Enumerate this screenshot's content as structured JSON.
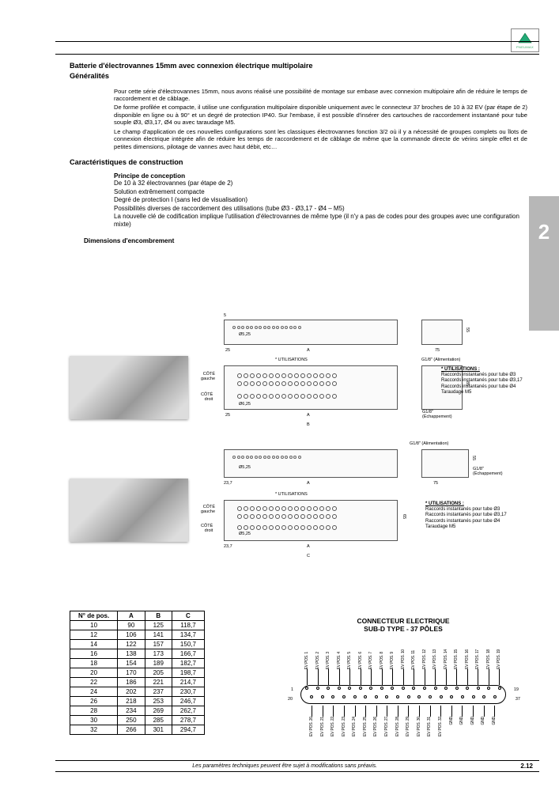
{
  "logo_text": "PNEUMAX",
  "title": "Batterie d'électrovannes 15mm avec connexion électrique multipolaire",
  "subtitle": "Généralités",
  "para1": "Pour cette série d'électrovannes 15mm, nous avons réalisé une possibilité de montage sur embase avec connexion multipolaire afin de réduire le temps de raccordement et de câblage.",
  "para2": "De forme profilée et compacte, il utilise une configuration multipolaire disponible uniquement avec le connecteur 37 broches de 10 à 32 EV (par étape de 2) disponible en ligne ou à 90° et un degré de protection IP40. Sur l'embase, il est possible d'insérer des cartouches de raccordement instantané pour tube souple Ø3, Ø3,17, Ø4 ou avec taraudage M5.",
  "para3": "Le champ d'application de ces nouvelles configurations sont les classiques électrovannes fonction 3/2 où il y a nécessité de groupes complets ou îlots de connexion électrique intégrée afin de réduire les temps de raccordement et de câblage de même que la commande directe de vérins simple effet et de petites dimensions, pilotage de vannes avec haut débit, etc…",
  "sec_carac": "Caractéristiques de construction",
  "principe_head": "Principe de conception",
  "principe_lines": [
    "De 10 à 32 électrovannes (par étape de 2)",
    "Solution extrêmement compacte",
    "Degré de protection I (sans led de visualisation)",
    "Possibilités diverses de raccordement des utilisations (tube Ø3 - Ø3,17 - Ø4 – M5)",
    "La nouvelle clé de codification implique l'utilisation d'électrovannes de même type (il n'y a pas de codes pour des groupes avec une configuration mixte)"
  ],
  "dim_head": "Dimensions d'encombrement",
  "chapter_tab": "2",
  "diag": {
    "utilisations": "* UTILISATIONS",
    "cote_gauche": "CÔTÉ\ngauche",
    "cote_droit": "CÔTÉ\ndroit",
    "g18_alim": "G1/8\" (Alimentation)",
    "g18_ech": "G1/8\"\n(Échappement)",
    "d525": "Ø5,25",
    "d625": "Ø6,25",
    "dim25": "25",
    "dim237": "23,7",
    "dimA": "A",
    "dimB": "B",
    "dimC": "C",
    "dim75": "75",
    "dim55": "55",
    "dim85": "85",
    "dim65": "65",
    "dim5": "5"
  },
  "util_note_title": "* UTILISATIONS :",
  "util_note_lines": [
    "Raccords instantanés pour tube Ø3",
    "Raccords instantanés pour tube Ø3,17",
    "Raccords instantanés pour tube Ø4",
    "Taraudage M5"
  ],
  "table": {
    "headers": [
      "N° de pos.",
      "A",
      "B",
      "C"
    ],
    "rows": [
      [
        "10",
        "90",
        "125",
        "118,7"
      ],
      [
        "12",
        "106",
        "141",
        "134,7"
      ],
      [
        "14",
        "122",
        "157",
        "150,7"
      ],
      [
        "16",
        "138",
        "173",
        "166,7"
      ],
      [
        "18",
        "154",
        "189",
        "182,7"
      ],
      [
        "20",
        "170",
        "205",
        "198,7"
      ],
      [
        "22",
        "186",
        "221",
        "214,7"
      ],
      [
        "24",
        "202",
        "237",
        "230,7"
      ],
      [
        "26",
        "218",
        "253",
        "246,7"
      ],
      [
        "28",
        "234",
        "269",
        "262,7"
      ],
      [
        "30",
        "250",
        "285",
        "278,7"
      ],
      [
        "32",
        "266",
        "301",
        "294,7"
      ]
    ]
  },
  "connector": {
    "title1": "CONNECTEUR ELECTRIQUE",
    "title2": "SUB-D TYPE - 37 PÔLES",
    "top_pins": [
      "EV POS. 1",
      "EV POS. 2",
      "EV POS. 3",
      "EV POS. 4",
      "EV POS. 5",
      "EV POS. 6",
      "EV POS. 7",
      "EV POS. 8",
      "EV POS. 9",
      "EV POS. 10",
      "EV POS. 11",
      "EV POS. 12",
      "EV POS. 13",
      "EV POS. 14",
      "EV POS. 15",
      "EV POS. 16",
      "EV POS. 17",
      "EV POS. 18",
      "EV POS. 19"
    ],
    "bot_pins": [
      "EV POS. 20",
      "EV POS. 21",
      "EV POS. 22",
      "EV POS. 23",
      "EV POS. 24",
      "EV POS. 25",
      "EV POS. 26",
      "EV POS. 27",
      "EV POS. 28",
      "EV POS. 29",
      "EV POS. 30",
      "EV POS. 31",
      "EV POS. 32",
      "GND",
      "GND",
      "GND",
      "GND",
      "GND"
    ],
    "pin1": "1",
    "pin19": "19",
    "pin20": "20",
    "pin37": "37"
  },
  "footer": {
    "text": "Les paramètres techniques peuvent être sujet à modifications sans préavis.",
    "page": "2.12"
  }
}
